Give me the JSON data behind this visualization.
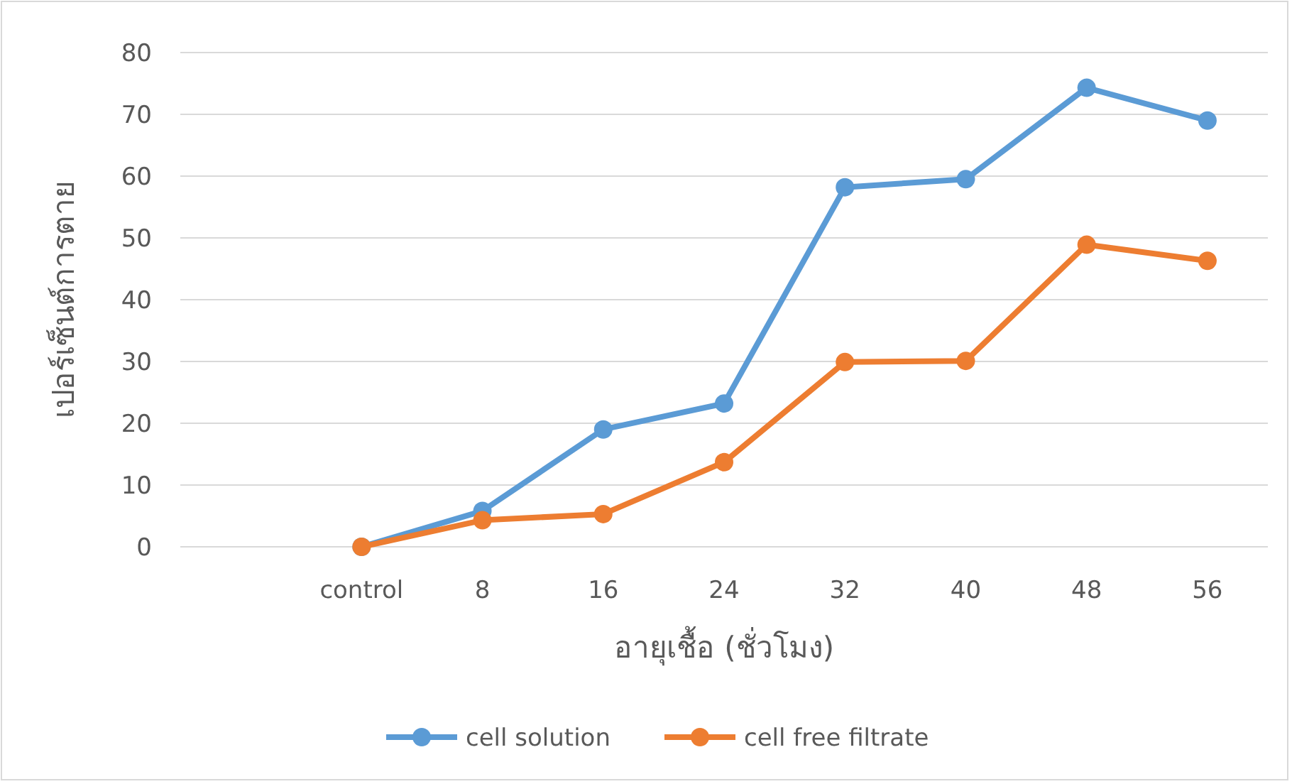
{
  "chart_data": {
    "type": "line",
    "xlabel": "อายุเชื้อ (ชั่วโมง)",
    "ylabel": "เปอร์เซ็นต์การตาย",
    "categories": [
      null,
      "control",
      "8",
      "16",
      "24",
      "32",
      "40",
      "48",
      "56"
    ],
    "series": [
      {
        "name": "cell solution",
        "color": "#5b9bd5",
        "values": [
          null,
          0,
          5.8,
          19,
          23.2,
          58.2,
          59.5,
          74.3,
          69
        ]
      },
      {
        "name": "cell free filtrate",
        "color": "#ed7d31",
        "values": [
          null,
          0,
          4.3,
          5.3,
          13.7,
          29.9,
          30.1,
          48.9,
          46.3
        ]
      }
    ],
    "ylim": [
      0,
      80
    ],
    "yticks": [
      0,
      10,
      20,
      30,
      40,
      50,
      60,
      70,
      80
    ],
    "grid": "y",
    "legend": "bottom",
    "marker": "circle",
    "line_style": "solid"
  }
}
